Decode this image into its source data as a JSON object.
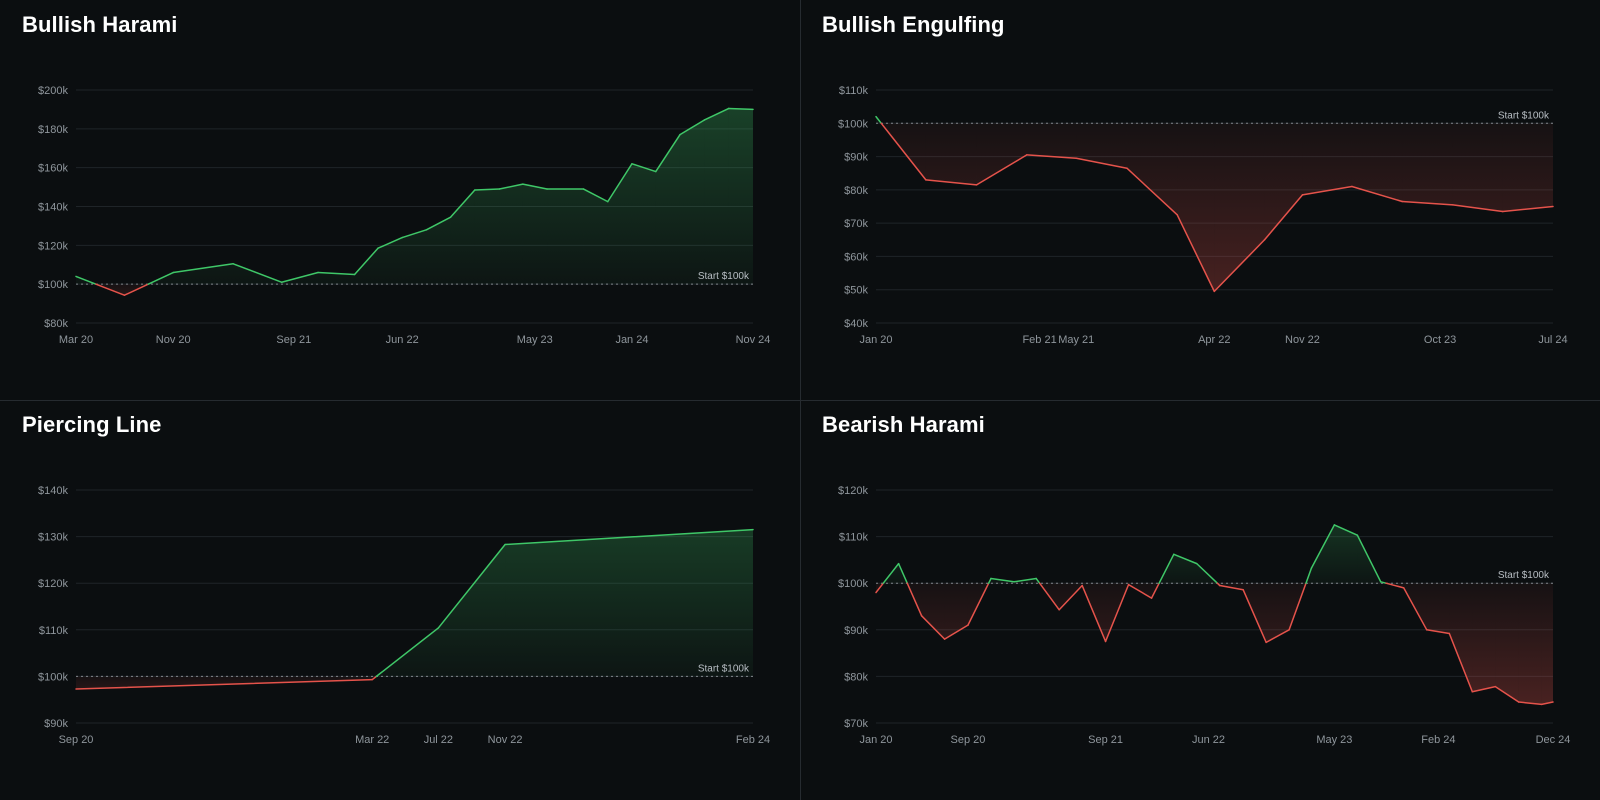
{
  "colors": {
    "background": "#0b0e10",
    "grid": "#1f2428",
    "axis_text": "#8f969c",
    "gain": "#3fc768",
    "loss": "#e5534b",
    "start_line": "#9aa0a6"
  },
  "chart_data": [
    {
      "type": "line",
      "title": "Bullish Harami",
      "baseline": 100,
      "baseline_label": "Start $100k",
      "ylim": [
        80,
        200
      ],
      "yticks": [
        80,
        100,
        120,
        140,
        160,
        180,
        200
      ],
      "ytick_labels": [
        "$80k",
        "$100k",
        "$120k",
        "$140k",
        "$160k",
        "$180k",
        "$200k"
      ],
      "xlim": [
        "2020-03-01",
        "2024-11-01"
      ],
      "xticks": [
        {
          "date": "2020-03-01",
          "label": "Mar 20"
        },
        {
          "date": "2020-11-01",
          "label": "Nov 20"
        },
        {
          "date": "2021-09-01",
          "label": "Sep 21"
        },
        {
          "date": "2022-06-01",
          "label": "Jun 22"
        },
        {
          "date": "2023-05-01",
          "label": "May 23"
        },
        {
          "date": "2024-01-01",
          "label": "Jan 24"
        },
        {
          "date": "2024-11-01",
          "label": "Nov 24"
        }
      ],
      "series": [
        {
          "x": [
            "2020-03-01",
            "2020-07-01",
            "2020-11-01",
            "2021-04-01",
            "2021-08-01",
            "2021-11-01",
            "2022-02-01",
            "2022-04-01",
            "2022-06-01",
            "2022-08-01",
            "2022-10-01",
            "2022-12-01",
            "2023-02-01",
            "2023-04-01",
            "2023-06-01",
            "2023-09-01",
            "2023-11-01",
            "2024-01-01",
            "2024-03-01",
            "2024-05-01",
            "2024-07-01",
            "2024-09-01",
            "2024-11-01"
          ],
          "y": [
            104.0,
            94.3,
            106.0,
            110.5,
            101.0,
            106.0,
            105.0,
            118.5,
            124.0,
            128.0,
            134.5,
            148.5,
            149.0,
            151.5,
            149.0,
            149.0,
            142.5,
            162.0,
            158.0,
            177.0,
            184.5,
            190.5,
            190.0
          ]
        }
      ]
    },
    {
      "type": "line",
      "title": "Bullish Engulfing",
      "baseline": 100,
      "baseline_label": "Start $100k",
      "ylim": [
        40,
        110
      ],
      "yticks": [
        40,
        50,
        60,
        70,
        80,
        90,
        100,
        110
      ],
      "ytick_labels": [
        "$40k",
        "$50k",
        "$60k",
        "$70k",
        "$80k",
        "$90k",
        "$100k",
        "$110k"
      ],
      "xlim": [
        "2020-01-01",
        "2024-07-01"
      ],
      "xticks": [
        {
          "date": "2020-01-01",
          "label": "Jan 20"
        },
        {
          "date": "2021-02-01",
          "label": "Feb 21"
        },
        {
          "date": "2021-05-01",
          "label": "May 21"
        },
        {
          "date": "2022-04-01",
          "label": "Apr 22"
        },
        {
          "date": "2022-11-01",
          "label": "Nov 22"
        },
        {
          "date": "2023-10-01",
          "label": "Oct 23"
        },
        {
          "date": "2024-07-01",
          "label": "Jul 24"
        }
      ],
      "series": [
        {
          "x": [
            "2020-01-01",
            "2020-05-01",
            "2020-09-01",
            "2021-01-01",
            "2021-05-01",
            "2021-09-01",
            "2022-01-01",
            "2022-04-01",
            "2022-08-01",
            "2022-11-01",
            "2023-03-01",
            "2023-07-01",
            "2023-11-01",
            "2024-03-01",
            "2024-07-01"
          ],
          "y": [
            102.0,
            83.0,
            81.5,
            90.5,
            89.5,
            86.5,
            72.5,
            49.5,
            65.0,
            78.5,
            81.0,
            76.5,
            75.5,
            73.5,
            75.0
          ]
        }
      ]
    },
    {
      "type": "line",
      "title": "Piercing Line",
      "baseline": 100,
      "baseline_label": "Start $100k",
      "ylim": [
        90,
        140
      ],
      "yticks": [
        90,
        100,
        110,
        120,
        130,
        140
      ],
      "ytick_labels": [
        "$90k",
        "$100k",
        "$110k",
        "$120k",
        "$130k",
        "$140k"
      ],
      "xlim": [
        "2020-09-01",
        "2024-02-01"
      ],
      "xticks": [
        {
          "date": "2020-09-01",
          "label": "Sep 20"
        },
        {
          "date": "2022-03-01",
          "label": "Mar 22"
        },
        {
          "date": "2022-07-01",
          "label": "Jul 22"
        },
        {
          "date": "2022-11-01",
          "label": "Nov 22"
        },
        {
          "date": "2024-02-01",
          "label": "Feb 24"
        }
      ],
      "series": [
        {
          "x": [
            "2020-09-01",
            "2022-03-01",
            "2022-07-01",
            "2022-11-01",
            "2024-02-01"
          ],
          "y": [
            97.3,
            99.3,
            110.4,
            128.3,
            131.5
          ]
        }
      ]
    },
    {
      "type": "line",
      "title": "Bearish Harami",
      "baseline": 100,
      "baseline_label": "Start $100k",
      "ylim": [
        70,
        120
      ],
      "yticks": [
        70,
        80,
        90,
        100,
        110,
        120
      ],
      "ytick_labels": [
        "$70k",
        "$80k",
        "$90k",
        "$100k",
        "$110k",
        "$120k"
      ],
      "xlim": [
        "2020-01-01",
        "2024-12-01"
      ],
      "xticks": [
        {
          "date": "2020-01-01",
          "label": "Jan 20"
        },
        {
          "date": "2020-09-01",
          "label": "Sep 20"
        },
        {
          "date": "2021-09-01",
          "label": "Sep 21"
        },
        {
          "date": "2022-06-01",
          "label": "Jun 22"
        },
        {
          "date": "2023-05-01",
          "label": "May 23"
        },
        {
          "date": "2024-02-01",
          "label": "Feb 24"
        },
        {
          "date": "2024-12-01",
          "label": "Dec 24"
        }
      ],
      "series": [
        {
          "x": [
            "2020-01-01",
            "2020-03-01",
            "2020-05-01",
            "2020-07-01",
            "2020-09-01",
            "2020-11-01",
            "2021-01-01",
            "2021-03-01",
            "2021-05-01",
            "2021-07-01",
            "2021-09-01",
            "2021-11-01",
            "2022-01-01",
            "2022-03-01",
            "2022-05-01",
            "2022-07-01",
            "2022-09-01",
            "2022-11-01",
            "2023-01-01",
            "2023-03-01",
            "2023-05-01",
            "2023-07-01",
            "2023-09-01",
            "2023-11-01",
            "2024-01-01",
            "2024-03-01",
            "2024-05-01",
            "2024-07-01",
            "2024-09-01",
            "2024-11-01",
            "2024-12-01"
          ],
          "y": [
            98.0,
            104.2,
            93.0,
            88.0,
            91.0,
            101.0,
            100.3,
            101.0,
            94.3,
            99.5,
            87.5,
            99.7,
            96.8,
            106.2,
            104.2,
            99.5,
            98.6,
            87.3,
            90.0,
            103.2,
            112.5,
            110.3,
            100.3,
            99.0,
            90.0,
            89.2,
            76.7,
            77.8,
            74.5,
            74.0,
            74.5
          ]
        }
      ]
    }
  ]
}
